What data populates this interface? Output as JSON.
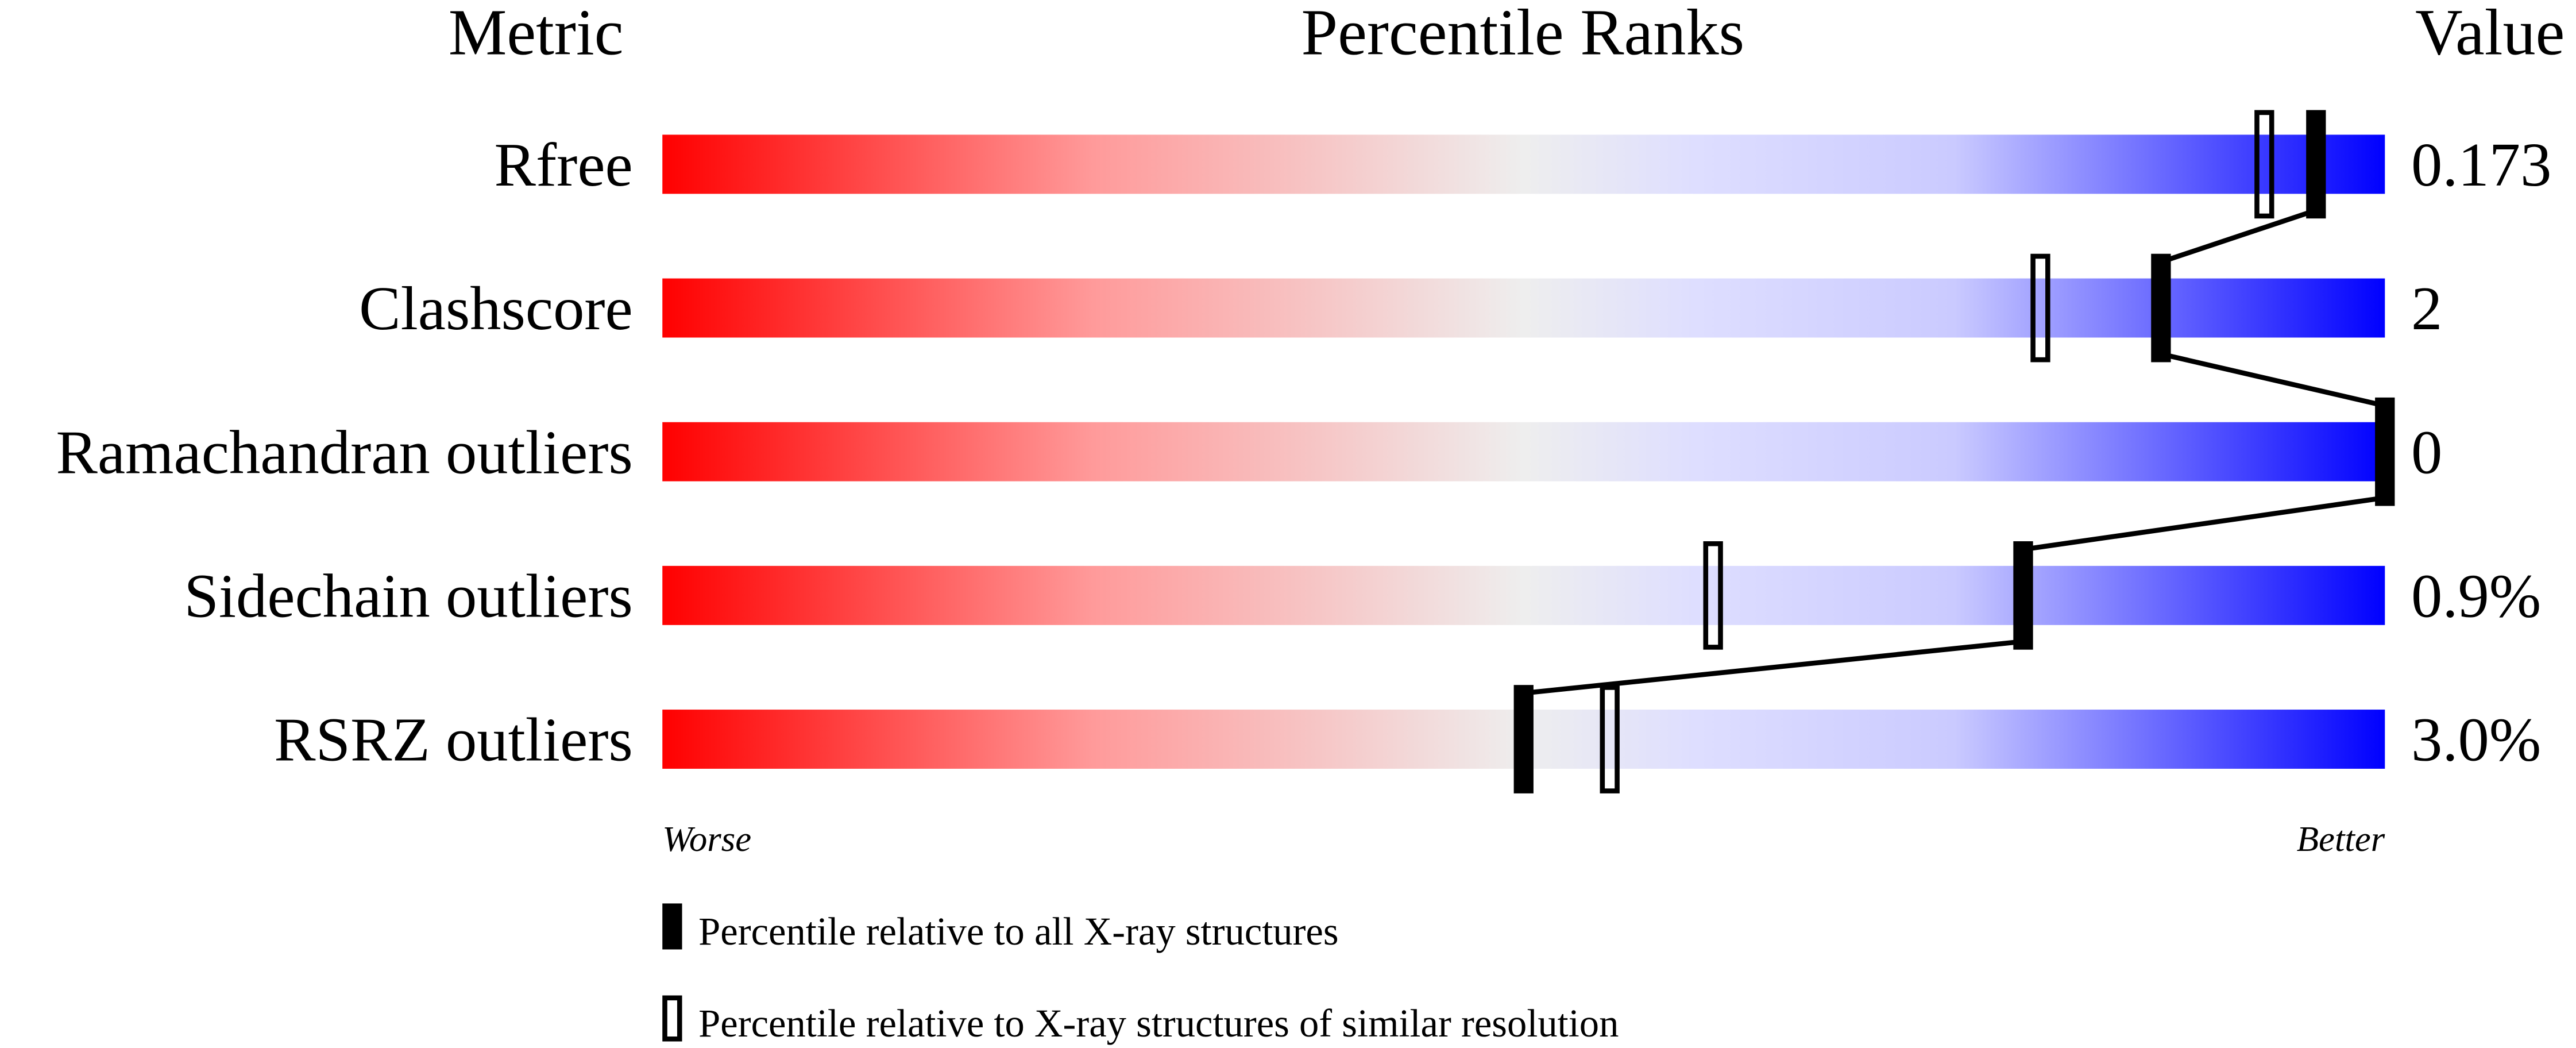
{
  "chart_data": {
    "type": "bar",
    "headers": {
      "metric": "Metric",
      "title": "Percentile Ranks",
      "value": "Value"
    },
    "xlim": [
      0,
      100
    ],
    "metrics": [
      {
        "name": "Rfree",
        "value": "0.173",
        "percentile_all": 96,
        "percentile_similar": 93
      },
      {
        "name": "Clashscore",
        "value": "2",
        "percentile_all": 87,
        "percentile_similar": 80
      },
      {
        "name": "Ramachandran outliers",
        "value": "0",
        "percentile_all": 100,
        "percentile_similar": 100
      },
      {
        "name": "Sidechain outliers",
        "value": "0.9%",
        "percentile_all": 79,
        "percentile_similar": 61
      },
      {
        "name": "RSRZ outliers",
        "value": "3.0%",
        "percentile_all": 50,
        "percentile_similar": 55
      }
    ],
    "axis_labels": {
      "left": "Worse",
      "right": "Better"
    },
    "legend": [
      {
        "marker": "filled",
        "label": "Percentile relative to all X-ray structures"
      },
      {
        "marker": "open",
        "label": "Percentile relative to X-ray structures of similar resolution"
      }
    ],
    "colors": {
      "worse": "#ff0000",
      "middle": "#eeeeee",
      "better": "#0000ff",
      "marker": "#000000"
    }
  }
}
